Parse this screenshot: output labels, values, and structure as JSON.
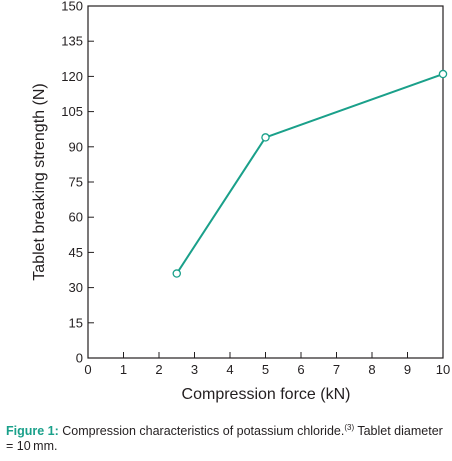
{
  "chart_data": {
    "type": "line",
    "xlabel": "Compression force (kN)",
    "ylabel": "Tablet breaking strength (N)",
    "xlim": [
      0,
      10
    ],
    "ylim": [
      0,
      150
    ],
    "x_ticks": [
      0,
      1,
      2,
      3,
      4,
      5,
      6,
      7,
      8,
      9,
      10
    ],
    "y_ticks": [
      0,
      15,
      30,
      45,
      60,
      75,
      90,
      105,
      120,
      135,
      150
    ],
    "grid": false,
    "series": [
      {
        "x": [
          2.5,
          5,
          10
        ],
        "y": [
          36,
          94,
          121
        ],
        "color": "#1aa08a",
        "marker": "open-circle"
      }
    ]
  },
  "caption": {
    "label": "Figure 1:",
    "text": " Compression characteristics of potassium chloride.",
    "ref": "(3)",
    "text2": " Tablet diameter = 10 mm."
  }
}
